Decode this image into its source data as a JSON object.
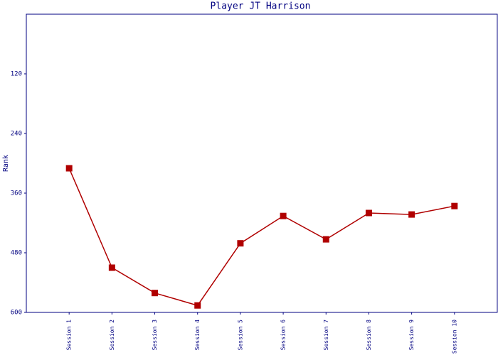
{
  "chart_data": {
    "type": "line",
    "title": "Player JT Harrison",
    "y_label": "Rank",
    "categories": [
      "Session 1",
      "Session 2",
      "Session 3",
      "Session 4",
      "Session 5",
      "Session 6",
      "Session 7",
      "Session 8",
      "Session 9",
      "Session 10"
    ],
    "series": [
      {
        "name": "Rank",
        "color": "#b00000",
        "values": [
          310,
          510,
          561,
          586,
          461,
          406,
          453,
          400,
          403,
          386
        ]
      }
    ],
    "ylim": [
      0,
      600
    ],
    "y_inverted": true,
    "yticks": [
      120,
      240,
      360,
      480,
      600
    ],
    "axis_color": "#000080"
  }
}
